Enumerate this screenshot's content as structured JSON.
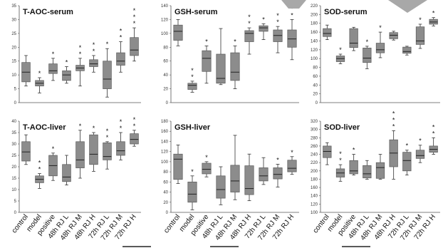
{
  "categories": [
    "control",
    "model",
    "positive",
    "48h RJ L",
    "48h RJ M",
    "48h RJ H",
    "72h RJ L",
    "72h RJ M",
    "72h RJ H"
  ],
  "colors": {
    "box": "#8c8c8c",
    "box_stroke": "#5a5a5a",
    "whisker": "#333333",
    "axis": "#555555"
  },
  "chart_data": [
    {
      "type": "box",
      "title": "T-AOC-serum",
      "ylim": [
        0,
        35
      ],
      "yticks": [
        0,
        5,
        10,
        15,
        20,
        25,
        30,
        35
      ],
      "categories": [
        "control",
        "model",
        "positive",
        "48h RJ L",
        "48h RJ M",
        "48h RJ H",
        "72h RJ L",
        "72h RJ M",
        "72h RJ H"
      ],
      "boxes": [
        {
          "min": 6,
          "q1": 7.5,
          "median": 11,
          "q3": 14.5,
          "max": 17
        },
        {
          "min": 3.5,
          "q1": 6,
          "median": 7,
          "q3": 8,
          "max": 9
        },
        {
          "min": 8,
          "q1": 10.5,
          "median": 11.5,
          "q3": 14,
          "max": 16
        },
        {
          "min": 7,
          "q1": 8,
          "median": 10,
          "q3": 11.5,
          "max": 13
        },
        {
          "min": 6,
          "q1": 11.5,
          "median": 12.5,
          "q3": 13.5,
          "max": 16
        },
        {
          "min": 11,
          "q1": 13,
          "median": 14,
          "q3": 15.5,
          "max": 17
        },
        {
          "min": 2,
          "q1": 5,
          "median": 8.5,
          "q3": 15,
          "max": 19.5
        },
        {
          "min": 11,
          "q1": 13.5,
          "median": 15,
          "q3": 18,
          "max": 22
        },
        {
          "min": 15,
          "q1": 17,
          "median": 19,
          "q3": 23.5,
          "max": 27
        }
      ],
      "stars": [
        "",
        "*",
        "*",
        "*",
        "* *",
        "* *",
        "*",
        "* *",
        "* * *"
      ]
    },
    {
      "type": "box",
      "title": "GSH-serum",
      "ylim": [
        0,
        140
      ],
      "yticks": [
        0,
        20,
        40,
        60,
        80,
        100,
        120,
        140
      ],
      "categories": [
        "control",
        "model",
        "positive",
        "48h RJ L",
        "48h RJ M",
        "48h RJ H",
        "72h RJ L",
        "72h RJ M",
        "72h RJ H"
      ],
      "boxes": [
        {
          "min": 82,
          "q1": 90,
          "median": 103,
          "q3": 112,
          "max": 120
        },
        {
          "min": 15,
          "q1": 19,
          "median": 25,
          "q3": 28,
          "max": 31
        },
        {
          "min": 28,
          "q1": 45,
          "median": 64,
          "q3": 75,
          "max": 82
        },
        {
          "min": 26,
          "q1": 28,
          "median": 35,
          "q3": 70,
          "max": 107
        },
        {
          "min": 20,
          "q1": 32,
          "median": 44,
          "q3": 72,
          "max": 82
        },
        {
          "min": 70,
          "q1": 88,
          "median": 100,
          "q3": 104,
          "max": 108
        },
        {
          "min": 91,
          "q1": 103,
          "median": 108,
          "q3": 111,
          "max": 114
        },
        {
          "min": 72,
          "q1": 88,
          "median": 97,
          "q3": 105,
          "max": 110
        },
        {
          "min": 62,
          "q1": 80,
          "median": 92,
          "q3": 105,
          "max": 120
        }
      ],
      "stars": [
        "",
        "* *",
        "*",
        "",
        "*",
        "* *",
        "*",
        "* *",
        "* *"
      ]
    },
    {
      "type": "box",
      "title": "SOD-serum",
      "ylim": [
        0,
        220
      ],
      "yticks": [
        0,
        20,
        40,
        60,
        80,
        100,
        120,
        140,
        160,
        180,
        200,
        220
      ],
      "categories": [
        "control",
        "model",
        "positive",
        "48h RJ L",
        "48h RJ M",
        "48h RJ H",
        "72h RJ L",
        "72h RJ M",
        "72h RJ H"
      ],
      "boxes": [
        {
          "min": 143,
          "q1": 150,
          "median": 157,
          "q3": 168,
          "max": 176
        },
        {
          "min": 88,
          "q1": 93,
          "median": 100,
          "q3": 106,
          "max": 110
        },
        {
          "min": 118,
          "q1": 125,
          "median": 135,
          "q3": 168,
          "max": 171
        },
        {
          "min": 77,
          "q1": 91,
          "median": 101,
          "q3": 124,
          "max": 128
        },
        {
          "min": 102,
          "q1": 113,
          "median": 120,
          "q3": 135,
          "max": 160
        },
        {
          "min": 142,
          "q1": 145,
          "median": 153,
          "q3": 159,
          "max": 162
        },
        {
          "min": 108,
          "q1": 112,
          "median": 116,
          "q3": 126,
          "max": 128
        },
        {
          "min": 123,
          "q1": 132,
          "median": 140,
          "q3": 172,
          "max": 178
        },
        {
          "min": 174,
          "q1": 178,
          "median": 183,
          "q3": 189,
          "max": 193
        }
      ],
      "stars": [
        "",
        "*",
        "",
        "*",
        "*",
        "",
        "",
        "*",
        "*"
      ]
    },
    {
      "type": "box",
      "title": "T-AOC-liver",
      "ylim": [
        0,
        40
      ],
      "yticks": [
        0,
        5,
        10,
        15,
        20,
        25,
        30,
        35,
        40
      ],
      "categories": [
        "control",
        "model",
        "positive",
        "48h RJ L",
        "48h RJ M",
        "48h RJ H",
        "72h RJ L",
        "72h RJ M",
        "72h RJ H"
      ],
      "boxes": [
        {
          "min": 21,
          "q1": 22.5,
          "median": 26.5,
          "q3": 31,
          "max": 34
        },
        {
          "min": 10.5,
          "q1": 13,
          "median": 14.5,
          "q3": 16,
          "max": 17
        },
        {
          "min": 14,
          "q1": 16,
          "median": 20.5,
          "q3": 25,
          "max": 26
        },
        {
          "min": 12,
          "q1": 13.5,
          "median": 15.5,
          "q3": 21,
          "max": 25
        },
        {
          "min": 15,
          "q1": 19.5,
          "median": 23,
          "q3": 31,
          "max": 36
        },
        {
          "min": 18,
          "q1": 21,
          "median": 25.5,
          "q3": 34,
          "max": 35
        },
        {
          "min": 19,
          "q1": 23,
          "median": 24.5,
          "q3": 30.5,
          "max": 31
        },
        {
          "min": 23,
          "q1": 25,
          "median": 27,
          "q3": 31,
          "max": 35
        },
        {
          "min": 29,
          "q1": 30,
          "median": 32,
          "q3": 34.5,
          "max": 36
        }
      ],
      "stars": [
        "",
        "* *",
        "*",
        "",
        "*",
        "*",
        "* *",
        "* *",
        "* *"
      ]
    },
    {
      "type": "box",
      "title": "GSH-liver",
      "ylim": [
        0,
        180
      ],
      "yticks": [
        0,
        20,
        40,
        60,
        80,
        100,
        120,
        140,
        160,
        180
      ],
      "categories": [
        "control",
        "model",
        "positive",
        "48h RJ L",
        "48h RJ M",
        "48h RJ H",
        "72h RJ L",
        "72h RJ M",
        "72h RJ H"
      ],
      "boxes": [
        {
          "min": 57,
          "q1": 65,
          "median": 105,
          "q3": 115,
          "max": 133
        },
        {
          "min": 5,
          "q1": 20,
          "median": 36,
          "q3": 60,
          "max": 72
        },
        {
          "min": 70,
          "q1": 76,
          "median": 85,
          "q3": 97,
          "max": 100
        },
        {
          "min": 15,
          "q1": 28,
          "median": 45,
          "q3": 72,
          "max": 90
        },
        {
          "min": 25,
          "q1": 40,
          "median": 62,
          "q3": 93,
          "max": 152
        },
        {
          "min": 23,
          "q1": 35,
          "median": 47,
          "q3": 92,
          "max": 115
        },
        {
          "min": 55,
          "q1": 62,
          "median": 72,
          "q3": 88,
          "max": 108
        },
        {
          "min": 50,
          "q1": 66,
          "median": 75,
          "q3": 88,
          "max": 95
        },
        {
          "min": 75,
          "q1": 80,
          "median": 87,
          "q3": 103,
          "max": 110
        }
      ],
      "stars": [
        "",
        "*",
        "*",
        "",
        "",
        "",
        "",
        "*",
        "*"
      ]
    },
    {
      "type": "box",
      "title": "SOD-liver",
      "ylim": [
        100,
        320
      ],
      "yticks": [
        100,
        120,
        140,
        160,
        180,
        200,
        220,
        240,
        260,
        280,
        300,
        320
      ],
      "categories": [
        "control",
        "model",
        "positive",
        "48h RJ L",
        "48h RJ M",
        "48h RJ H",
        "72h RJ L",
        "72h RJ M",
        "72h RJ H"
      ],
      "boxes": [
        {
          "min": 215,
          "q1": 232,
          "median": 247,
          "q3": 260,
          "max": 268
        },
        {
          "min": 175,
          "q1": 185,
          "median": 195,
          "q3": 205,
          "max": 215
        },
        {
          "min": 190,
          "q1": 193,
          "median": 200,
          "q3": 225,
          "max": 240
        },
        {
          "min": 180,
          "q1": 183,
          "median": 193,
          "q3": 213,
          "max": 225
        },
        {
          "min": 180,
          "q1": 182,
          "median": 208,
          "q3": 220,
          "max": 240
        },
        {
          "min": 180,
          "q1": 210,
          "median": 243,
          "q3": 275,
          "max": 297
        },
        {
          "min": 190,
          "q1": 200,
          "median": 225,
          "q3": 245,
          "max": 250
        },
        {
          "min": 220,
          "q1": 230,
          "median": 237,
          "q3": 250,
          "max": 262
        },
        {
          "min": 240,
          "q1": 245,
          "median": 252,
          "q3": 260,
          "max": 280
        }
      ],
      "stars": [
        "",
        "* *",
        "*",
        "",
        "",
        "* * *",
        "*",
        "*",
        "* *"
      ]
    }
  ]
}
